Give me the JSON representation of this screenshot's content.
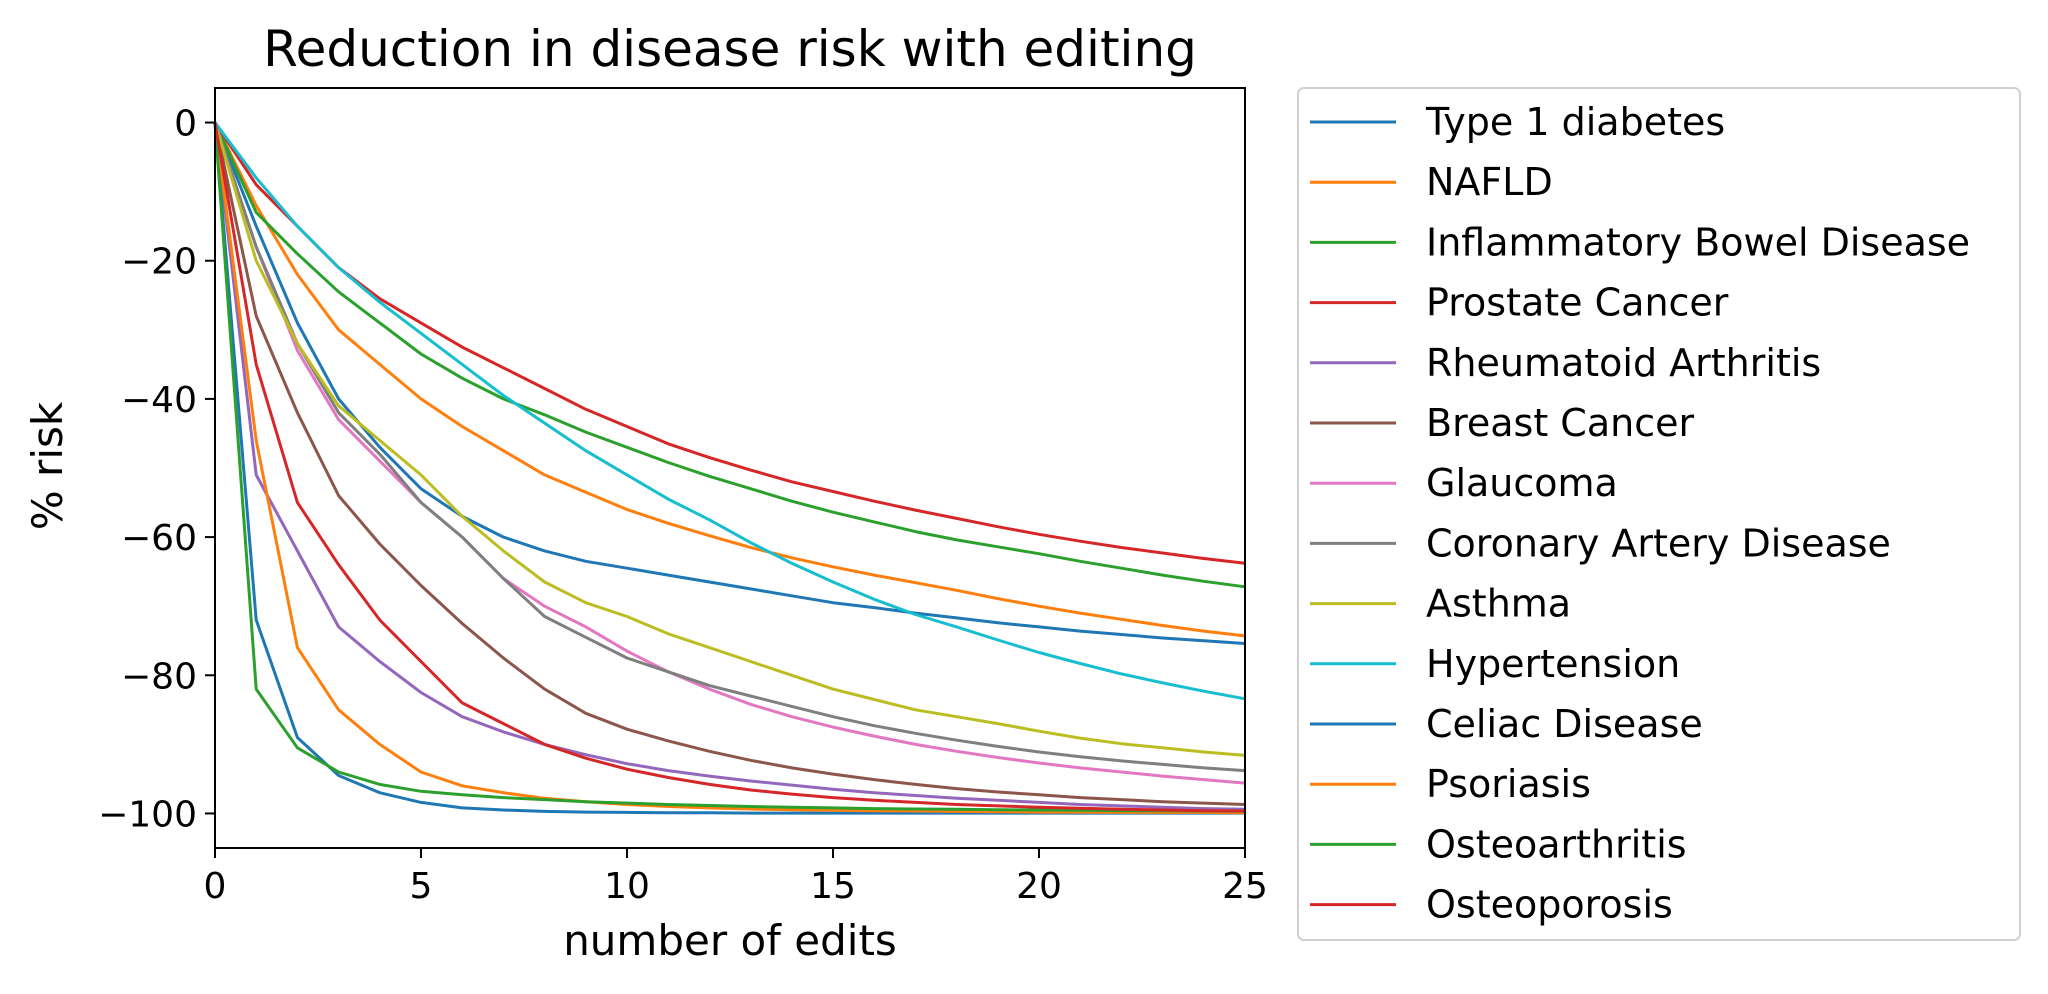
{
  "chart_data": {
    "type": "line",
    "title": "Reduction in disease risk with editing",
    "xlabel": "number of edits",
    "ylabel": "% risk",
    "xlim": [
      0,
      25
    ],
    "ylim": [
      -105,
      5
    ],
    "xticks": [
      0,
      5,
      10,
      15,
      20,
      25
    ],
    "yticks": [
      0,
      -20,
      -40,
      -60,
      -80,
      -100
    ],
    "grid": false,
    "legend_position": "outside-right",
    "x": [
      0,
      1,
      2,
      3,
      4,
      5,
      6,
      7,
      8,
      9,
      10,
      11,
      12,
      13,
      14,
      15,
      16,
      17,
      18,
      19,
      20,
      21,
      22,
      23,
      24,
      25
    ],
    "series": [
      {
        "name": "Type 1 diabetes",
        "color": "#1f77b4",
        "values": [
          0,
          -15,
          -29,
          -40,
          -47,
          -53,
          -57,
          -60,
          -62,
          -63.5,
          -64.5,
          -65.5,
          -66.5,
          -67.5,
          -68.5,
          -69.5,
          -70.2,
          -71,
          -71.7,
          -72.4,
          -73,
          -73.6,
          -74.1,
          -74.6,
          -75,
          -75.4
        ]
      },
      {
        "name": "NAFLD",
        "color": "#ff7f0e",
        "values": [
          0,
          -12,
          -22,
          -30,
          -35,
          -40,
          -44,
          -47.5,
          -51,
          -53.5,
          -56,
          -58,
          -59.8,
          -61.5,
          -63,
          -64.3,
          -65.5,
          -66.6,
          -67.7,
          -68.9,
          -70,
          -71,
          -71.9,
          -72.8,
          -73.6,
          -74.3
        ]
      },
      {
        "name": "Inflammatory Bowel Disease",
        "color": "#2ca02c",
        "values": [
          0,
          -13,
          -19,
          -24.5,
          -29,
          -33.5,
          -37,
          -40,
          -42.3,
          -44.8,
          -47,
          -49.2,
          -51.2,
          -53,
          -54.8,
          -56.4,
          -57.8,
          -59.2,
          -60.4,
          -61.4,
          -62.4,
          -63.5,
          -64.5,
          -65.5,
          -66.4,
          -67.2
        ]
      },
      {
        "name": "Prostate Cancer",
        "color": "#d62728",
        "values": [
          0,
          -9,
          -15,
          -21,
          -25.5,
          -29,
          -32.5,
          -35.5,
          -38.5,
          -41.5,
          -44,
          -46.5,
          -48.5,
          -50.3,
          -52,
          -53.4,
          -54.8,
          -56.1,
          -57.3,
          -58.5,
          -59.6,
          -60.6,
          -61.5,
          -62.3,
          -63.1,
          -63.8
        ]
      },
      {
        "name": "Rheumatoid Arthritis",
        "color": "#9467bd",
        "values": [
          0,
          -51,
          -62,
          -73,
          -78,
          -82.5,
          -86,
          -88.2,
          -90,
          -91.5,
          -92.8,
          -93.8,
          -94.6,
          -95.3,
          -95.9,
          -96.5,
          -97,
          -97.4,
          -97.8,
          -98.1,
          -98.4,
          -98.7,
          -98.9,
          -99.1,
          -99.3,
          -99.4
        ]
      },
      {
        "name": "Breast Cancer",
        "color": "#8c564b",
        "values": [
          0,
          -28,
          -42,
          -54,
          -61,
          -67,
          -72.5,
          -77.5,
          -82,
          -85.5,
          -87.8,
          -89.5,
          -91,
          -92.3,
          -93.4,
          -94.3,
          -95.1,
          -95.8,
          -96.4,
          -96.9,
          -97.3,
          -97.7,
          -98,
          -98.3,
          -98.5,
          -98.7
        ]
      },
      {
        "name": "Glaucoma",
        "color": "#e377c2",
        "values": [
          0,
          -18,
          -33,
          -43,
          -49,
          -55,
          -60,
          -66,
          -70,
          -73,
          -76.5,
          -79.5,
          -82,
          -84.2,
          -86,
          -87.5,
          -88.8,
          -90,
          -91,
          -91.9,
          -92.7,
          -93.4,
          -94,
          -94.6,
          -95.1,
          -95.6
        ]
      },
      {
        "name": "Coronary Artery Disease",
        "color": "#7f7f7f",
        "values": [
          0,
          -18,
          -32,
          -42,
          -48,
          -55,
          -60,
          -66,
          -71.5,
          -74.5,
          -77.5,
          -79.5,
          -81.5,
          -83,
          -84.5,
          -86,
          -87.3,
          -88.4,
          -89.4,
          -90.3,
          -91.1,
          -91.8,
          -92.4,
          -92.9,
          -93.4,
          -93.8
        ]
      },
      {
        "name": "Asthma",
        "color": "#bcbd22",
        "values": [
          0,
          -20,
          -32,
          -41,
          -46,
          -51,
          -57,
          -62,
          -66.5,
          -69.5,
          -71.5,
          -74,
          -76,
          -78,
          -80,
          -82,
          -83.5,
          -85,
          -86,
          -87,
          -88.1,
          -89.1,
          -89.9,
          -90.5,
          -91.1,
          -91.6
        ]
      },
      {
        "name": "Hypertension",
        "color": "#17becf",
        "values": [
          0,
          -8,
          -15,
          -21,
          -26,
          -30.5,
          -35,
          -39.5,
          -43.5,
          -47.5,
          -51,
          -54.5,
          -57.5,
          -60.8,
          -63.8,
          -66.5,
          -69,
          -71.2,
          -73,
          -74.9,
          -76.7,
          -78.3,
          -79.8,
          -81.1,
          -82.3,
          -83.4
        ]
      },
      {
        "name": "Celiac Disease",
        "color": "#1f77b4",
        "values": [
          0,
          -72,
          -89,
          -94.5,
          -97,
          -98.4,
          -99.2,
          -99.5,
          -99.7,
          -99.8,
          -99.85,
          -99.9,
          -99.9,
          -99.95,
          -99.95,
          -99.95,
          -99.95,
          -99.95,
          -99.95,
          -99.95,
          -99.95,
          -99.95,
          -99.95,
          -99.95,
          -99.95,
          -99.95
        ]
      },
      {
        "name": "Psoriasis",
        "color": "#ff7f0e",
        "values": [
          0,
          -46,
          -76,
          -85,
          -90,
          -94,
          -96,
          -97,
          -97.8,
          -98.3,
          -98.7,
          -99,
          -99.2,
          -99.35,
          -99.45,
          -99.55,
          -99.6,
          -99.65,
          -99.7,
          -99.75,
          -99.8,
          -99.8,
          -99.85,
          -99.85,
          -99.85,
          -99.9
        ]
      },
      {
        "name": "Osteoarthritis",
        "color": "#2ca02c",
        "values": [
          0,
          -82,
          -90.5,
          -94,
          -95.8,
          -96.8,
          -97.3,
          -97.7,
          -98,
          -98.3,
          -98.5,
          -98.7,
          -98.85,
          -99,
          -99.1,
          -99.2,
          -99.3,
          -99.35,
          -99.4,
          -99.45,
          -99.5,
          -99.55,
          -99.6,
          -99.62,
          -99.65,
          -99.68
        ]
      },
      {
        "name": "Osteoporosis",
        "color": "#d62728",
        "values": [
          0,
          -35,
          -55,
          -64,
          -72,
          -78,
          -84,
          -87,
          -90,
          -92,
          -93.6,
          -94.8,
          -95.8,
          -96.6,
          -97.2,
          -97.7,
          -98.1,
          -98.4,
          -98.7,
          -98.9,
          -99.1,
          -99.25,
          -99.4,
          -99.5,
          -99.6,
          -99.65
        ]
      }
    ]
  }
}
